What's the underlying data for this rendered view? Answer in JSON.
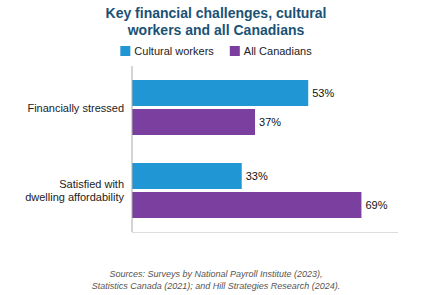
{
  "chart_data": {
    "type": "bar",
    "orientation": "horizontal",
    "title": "Key financial challenges, cultural\nworkers and all Canadians",
    "categories": [
      "Financially stressed",
      "Satisfied with\ndwelling affordability"
    ],
    "series": [
      {
        "name": "Cultural workers",
        "color": "#2196d4",
        "values": [
          53,
          33
        ],
        "value_labels": [
          "53%",
          "33%"
        ]
      },
      {
        "name": "All Canadians",
        "color": "#7b3fa0",
        "values": [
          37,
          69
        ],
        "value_labels": [
          "37%",
          "69%"
        ]
      }
    ],
    "xlim": [
      0,
      80
    ],
    "data_labels": true,
    "tick_labels": "y",
    "legend": "top",
    "grid": false,
    "annotations": [
      "Sources: Surveys by National Payroll Institute (2023),\nStatistics Canada (2021); and Hill Strategies Research (2024)."
    ]
  }
}
